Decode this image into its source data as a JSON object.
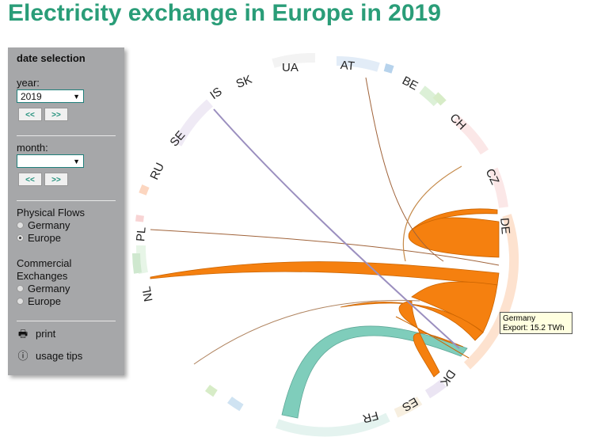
{
  "title": "Electricity exchange in Europe in 2019",
  "panel": {
    "heading": "date selection",
    "year_label": "year:",
    "year_value": "2019",
    "prev": "<<",
    "next": ">>",
    "month_label": "month:",
    "month_value": "",
    "physical_label": "Physical Flows",
    "physical_options": [
      "Germany",
      "Europe"
    ],
    "physical_selected": "Europe",
    "commercial_label_1": "Commercial",
    "commercial_label_2": "Exchanges",
    "commercial_options": [
      "Germany",
      "Europe"
    ],
    "print_label": "print",
    "tips_label": "usage tips"
  },
  "countries": [
    "AT",
    "BE",
    "CH",
    "CZ",
    "DE",
    "DK",
    "ES",
    "FR",
    "NL",
    "PL",
    "RU",
    "SE",
    "IS",
    "SK",
    "UA"
  ],
  "tooltip": {
    "line1": "Germany",
    "line2": "Export: 15.2 TWh"
  },
  "colors": {
    "title": "#2a9d78",
    "export_flow": "#f5800f",
    "import_flow": "#7fcdbb",
    "panel": "#a6a7a9"
  }
}
